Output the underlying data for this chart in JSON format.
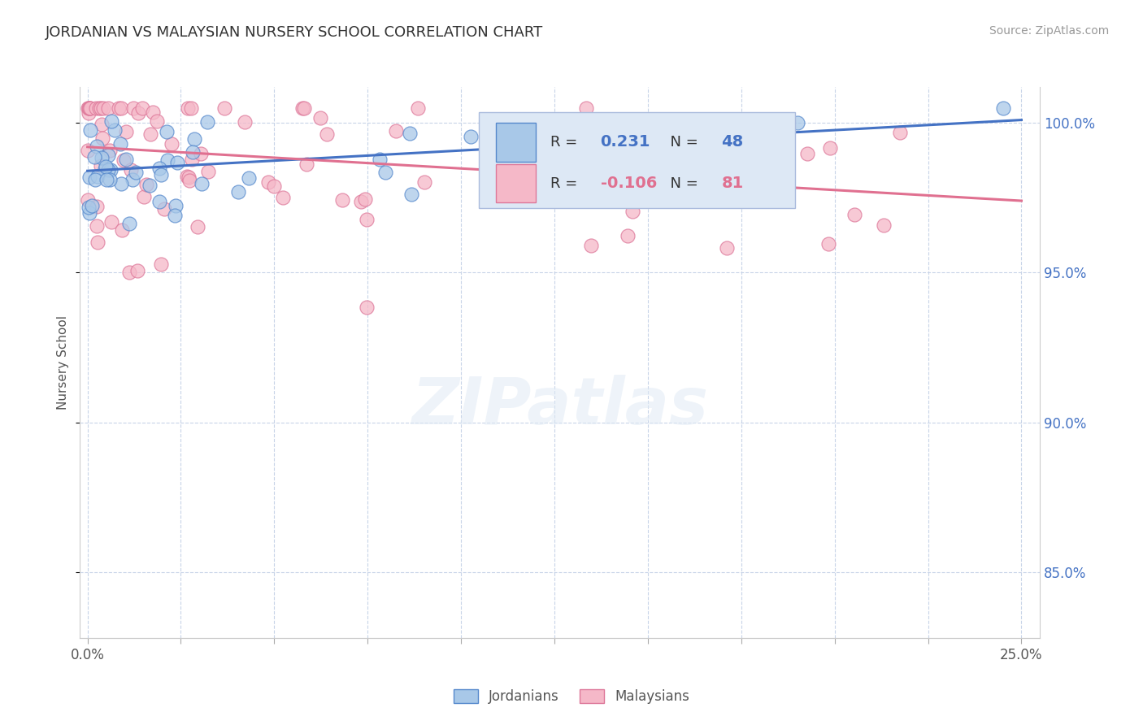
{
  "title": "JORDANIAN VS MALAYSIAN NURSERY SCHOOL CORRELATION CHART",
  "source_text": "Source: ZipAtlas.com",
  "ylabel": "Nursery School",
  "xlim": [
    -0.002,
    0.255
  ],
  "ylim": [
    0.828,
    1.012
  ],
  "yticks": [
    0.85,
    0.9,
    0.95,
    1.0
  ],
  "ytick_labels": [
    "85.0%",
    "90.0%",
    "95.0%",
    "100.0%"
  ],
  "jordan_R": 0.231,
  "jordan_N": 48,
  "malay_R": -0.106,
  "malay_N": 81,
  "jordan_color": "#a8c8e8",
  "jordan_edge_color": "#5588cc",
  "jordan_line_color": "#4472c4",
  "malay_color": "#f5b8c8",
  "malay_edge_color": "#dd7799",
  "malay_line_color": "#e07090",
  "background_color": "#ffffff",
  "grid_color": "#c8d4e8",
  "title_color": "#333333",
  "right_axis_color": "#4472c4",
  "legend_box_color": "#dde8f5",
  "legend_box_edge": "#aabbdd",
  "watermark": "ZIPatlas",
  "jordan_trend_x0": 0.0,
  "jordan_trend_y0": 0.984,
  "jordan_trend_x1": 0.25,
  "jordan_trend_y1": 1.001,
  "malay_trend_x0": 0.0,
  "malay_trend_y0": 0.992,
  "malay_trend_x1": 0.25,
  "malay_trend_y1": 0.974
}
